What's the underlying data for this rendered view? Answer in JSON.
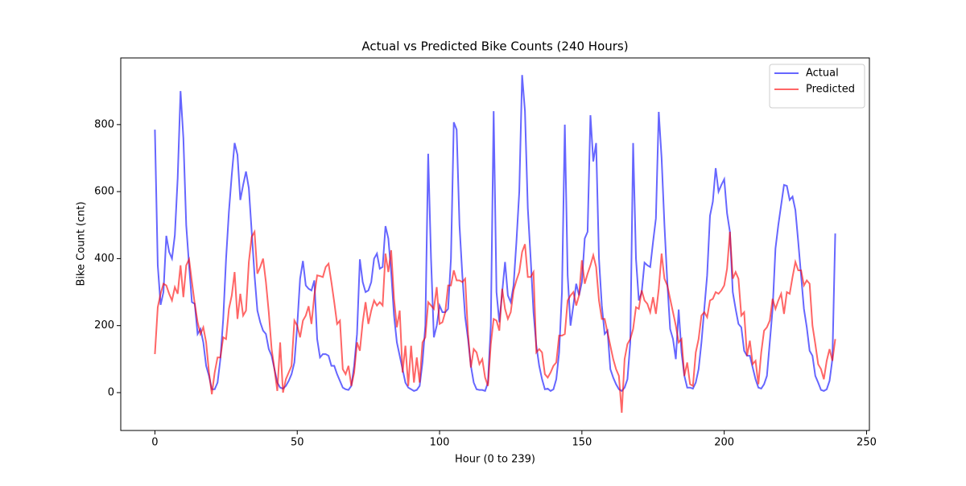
{
  "chart_data": {
    "type": "line",
    "title": "Actual vs Predicted Bike Counts (240 Hours)",
    "xlabel": "Hour (0 to 239)",
    "ylabel": "Bike Count (cnt)",
    "x": [
      0,
      1,
      2,
      3,
      4,
      5,
      6,
      7,
      8,
      9,
      10,
      11,
      12,
      13,
      14,
      15,
      16,
      17,
      18,
      19,
      20,
      21,
      22,
      23,
      24,
      25,
      26,
      27,
      28,
      29,
      30,
      31,
      32,
      33,
      34,
      35,
      36,
      37,
      38,
      39,
      40,
      41,
      42,
      43,
      44,
      45,
      46,
      47,
      48,
      49,
      50,
      51,
      52,
      53,
      54,
      55,
      56,
      57,
      58,
      59,
      60,
      61,
      62,
      63,
      64,
      65,
      66,
      67,
      68,
      69,
      70,
      71,
      72,
      73,
      74,
      75,
      76,
      77,
      78,
      79,
      80,
      81,
      82,
      83,
      84,
      85,
      86,
      87,
      88,
      89,
      90,
      91,
      92,
      93,
      94,
      95,
      96,
      97,
      98,
      99,
      100,
      101,
      102,
      103,
      104,
      105,
      106,
      107,
      108,
      109,
      110,
      111,
      112,
      113,
      114,
      115,
      116,
      117,
      118,
      119,
      120,
      121,
      122,
      123,
      124,
      125,
      126,
      127,
      128,
      129,
      130,
      131,
      132,
      133,
      134,
      135,
      136,
      137,
      138,
      139,
      140,
      141,
      142,
      143,
      144,
      145,
      146,
      147,
      148,
      149,
      150,
      151,
      152,
      153,
      154,
      155,
      156,
      157,
      158,
      159,
      160,
      161,
      162,
      163,
      164,
      165,
      166,
      167,
      168,
      169,
      170,
      171,
      172,
      173,
      174,
      175,
      176,
      177,
      178,
      179,
      180,
      181,
      182,
      183,
      184,
      185,
      186,
      187,
      188,
      189,
      190,
      191,
      192,
      193,
      194,
      195,
      196,
      197,
      198,
      199,
      200,
      201,
      202,
      203,
      204,
      205,
      206,
      207,
      208,
      209,
      210,
      211,
      212,
      213,
      214,
      215,
      216,
      217,
      218,
      219,
      220,
      221,
      222,
      223,
      224,
      225,
      226,
      227,
      228,
      229,
      230,
      231,
      232,
      233,
      234,
      235,
      236,
      237,
      238,
      239
    ],
    "series": [
      {
        "name": "Actual",
        "color": "#0000ff",
        "values": [
          785,
          380,
          262,
          300,
          468,
          420,
          400,
          470,
          640,
          900,
          760,
          500,
          380,
          270,
          265,
          175,
          190,
          150,
          80,
          50,
          10,
          10,
          30,
          100,
          220,
          400,
          540,
          650,
          745,
          710,
          575,
          620,
          660,
          610,
          480,
          350,
          245,
          210,
          185,
          175,
          130,
          110,
          70,
          30,
          15,
          12,
          20,
          35,
          55,
          90,
          200,
          340,
          393,
          320,
          310,
          305,
          335,
          160,
          105,
          115,
          115,
          110,
          80,
          80,
          55,
          35,
          15,
          10,
          8,
          20,
          80,
          175,
          398,
          330,
          300,
          305,
          330,
          400,
          415,
          370,
          375,
          497,
          460,
          360,
          230,
          150,
          110,
          70,
          30,
          15,
          10,
          5,
          8,
          20,
          90,
          200,
          713,
          400,
          165,
          200,
          260,
          240,
          240,
          250,
          400,
          807,
          785,
          500,
          350,
          225,
          160,
          80,
          30,
          10,
          8,
          8,
          5,
          30,
          200,
          840,
          300,
          210,
          300,
          390,
          290,
          270,
          320,
          450,
          600,
          948,
          840,
          550,
          400,
          240,
          140,
          80,
          40,
          10,
          12,
          5,
          10,
          40,
          120,
          300,
          800,
          350,
          200,
          260,
          325,
          290,
          330,
          460,
          480,
          828,
          690,
          745,
          400,
          260,
          175,
          185,
          70,
          45,
          25,
          10,
          5,
          15,
          40,
          150,
          745,
          400,
          275,
          300,
          388,
          380,
          375,
          450,
          520,
          838,
          700,
          500,
          330,
          190,
          160,
          100,
          248,
          120,
          50,
          15,
          15,
          12,
          30,
          70,
          150,
          250,
          350,
          528,
          570,
          670,
          600,
          620,
          637,
          535,
          480,
          300,
          250,
          205,
          195,
          125,
          110,
          110,
          75,
          40,
          15,
          12,
          25,
          50,
          150,
          250,
          430,
          500,
          560,
          620,
          617,
          575,
          585,
          545,
          450,
          350,
          250,
          195,
          125,
          110,
          50,
          30,
          8,
          5,
          10,
          35,
          100,
          475
        ]
      },
      {
        "name": "Predicted",
        "color": "#ff0000",
        "values": [
          115,
          255,
          295,
          325,
          320,
          295,
          275,
          315,
          295,
          380,
          285,
          380,
          398,
          330,
          265,
          210,
          175,
          195,
          150,
          60,
          -5,
          60,
          105,
          105,
          165,
          160,
          250,
          290,
          360,
          220,
          295,
          230,
          245,
          390,
          465,
          480,
          355,
          375,
          400,
          330,
          240,
          130,
          70,
          5,
          150,
          0,
          40,
          60,
          80,
          215,
          200,
          165,
          215,
          230,
          258,
          205,
          290,
          350,
          348,
          345,
          375,
          385,
          330,
          270,
          205,
          215,
          70,
          55,
          80,
          20,
          60,
          150,
          125,
          210,
          270,
          205,
          245,
          275,
          260,
          270,
          260,
          415,
          360,
          425,
          280,
          195,
          245,
          60,
          140,
          20,
          140,
          30,
          105,
          30,
          150,
          165,
          270,
          260,
          250,
          315,
          205,
          210,
          240,
          320,
          320,
          365,
          335,
          335,
          330,
          340,
          175,
          75,
          130,
          120,
          85,
          100,
          45,
          20,
          145,
          220,
          215,
          185,
          310,
          250,
          220,
          240,
          305,
          335,
          360,
          420,
          443,
          345,
          345,
          360,
          120,
          130,
          120,
          55,
          45,
          60,
          80,
          90,
          170,
          170,
          175,
          275,
          290,
          300,
          260,
          290,
          395,
          325,
          355,
          380,
          410,
          375,
          275,
          220,
          220,
          180,
          140,
          100,
          70,
          50,
          -60,
          100,
          145,
          160,
          190,
          255,
          250,
          305,
          275,
          265,
          240,
          285,
          235,
          310,
          415,
          340,
          320,
          280,
          240,
          200,
          150,
          160,
          50,
          90,
          25,
          20,
          120,
          160,
          230,
          240,
          225,
          275,
          280,
          300,
          295,
          305,
          320,
          370,
          480,
          340,
          360,
          340,
          230,
          240,
          110,
          155,
          85,
          95,
          25,
          120,
          185,
          195,
          215,
          280,
          250,
          275,
          295,
          235,
          300,
          295,
          345,
          390,
          365,
          365,
          320,
          335,
          325,
          200,
          145,
          85,
          70,
          40,
          95,
          130,
          95,
          160
        ]
      }
    ],
    "xlim": [
      -12,
      251
    ],
    "xticks": [
      0,
      50,
      100,
      150,
      200,
      250
    ],
    "ylim": [
      -113,
      999
    ],
    "yticks": [
      0,
      200,
      400,
      600,
      800
    ],
    "legend": "upper right"
  }
}
